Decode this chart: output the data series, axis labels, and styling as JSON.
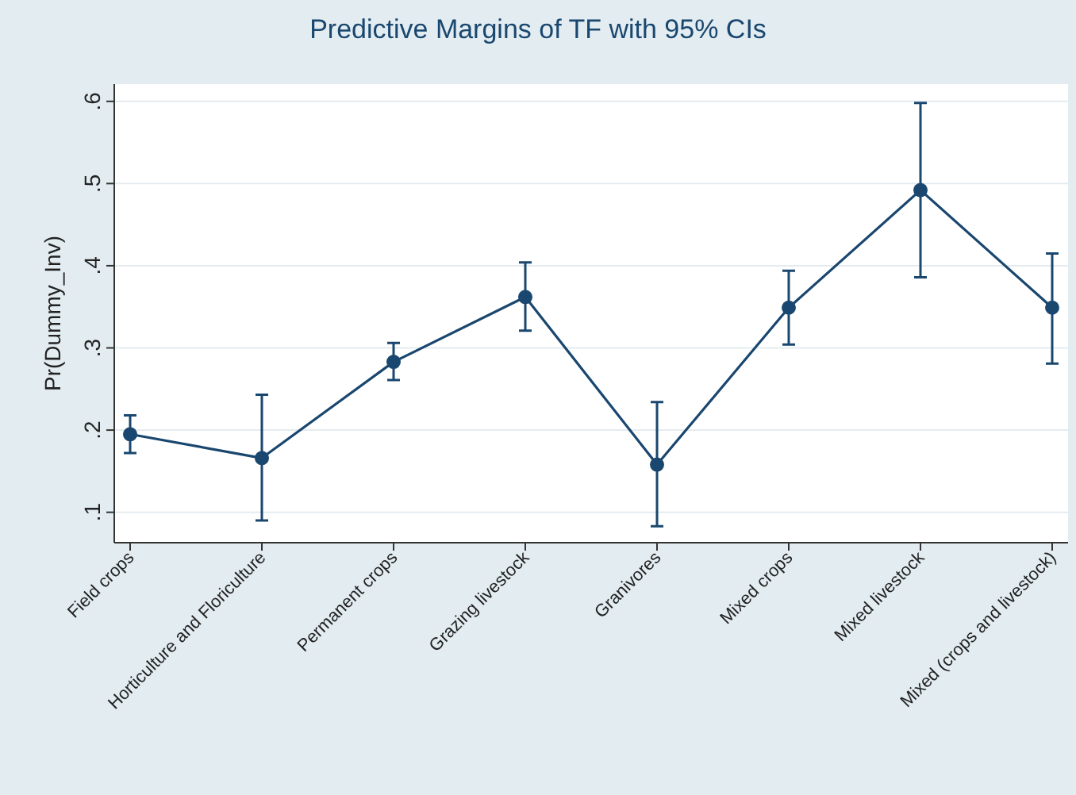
{
  "chart_data": {
    "type": "line",
    "title": "Predictive Margins of TF with 95% CIs",
    "ylabel": "Pr(Dummy_Inv)",
    "categories": [
      "Field crops",
      "Horticulture and Floriculture",
      "Permanent crops",
      "Grazing livestock",
      "Granivores",
      "Mixed crops",
      "Mixed livestock",
      "Mixed (crops and livestock)"
    ],
    "series": [
      {
        "color": "#1a476f",
        "values": [
          0.195,
          0.166,
          0.283,
          0.362,
          0.158,
          0.349,
          0.492,
          0.349
        ],
        "errors": [
          [
            0.172,
            0.218
          ],
          [
            0.09,
            0.243
          ],
          [
            0.261,
            0.306
          ],
          [
            0.321,
            0.404
          ],
          [
            0.083,
            0.234
          ],
          [
            0.304,
            0.394
          ],
          [
            0.386,
            0.598
          ],
          [
            0.281,
            0.415
          ]
        ]
      }
    ],
    "ylim": [
      0.063,
      0.621
    ],
    "yticks": [
      {
        "value": 0.1,
        "label": ".1"
      },
      {
        "value": 0.2,
        "label": ".2"
      },
      {
        "value": 0.3,
        "label": ".3"
      },
      {
        "value": 0.4,
        "label": ".4"
      },
      {
        "value": 0.5,
        "label": ".5"
      },
      {
        "value": 0.6,
        "label": ".6"
      }
    ],
    "grid": "y",
    "marker": "circle",
    "line_style": "solid"
  }
}
